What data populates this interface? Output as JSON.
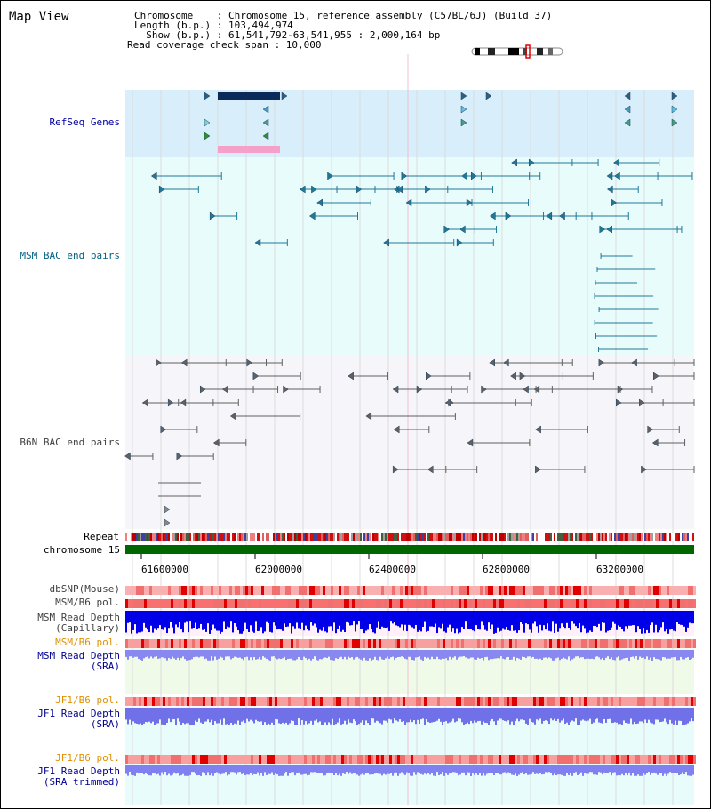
{
  "panel_title": "Map View",
  "info": {
    "chromosome_line": "Chromosome    : Chromosome 15, reference assembly (C57BL/6J) (Build 37)",
    "length_line": "Length (b.p.) : 103,494,974",
    "show_line": "  Show (b.p.) : 61,541,792-63,541,955 : 2,000,164 bp",
    "coverage_line": "Read coverage check span : 10,000"
  },
  "tracks": {
    "refseq": "RefSeq Genes",
    "msm_bac": "MSM BAC end pairs",
    "b6n_bac": "B6N BAC end pairs",
    "repeat": "Repeat",
    "chromosome": "chromosome 15",
    "dbsnp": "dbSNP(Mouse)",
    "msm_b6_pol_1": "MSM/B6 pol.",
    "msm_read_depth_cap": "MSM Read Depth\n(Capillary)",
    "msm_b6_pol_2": "MSM/B6 pol.",
    "msm_read_depth_sra": "MSM Read Depth\n(SRA)",
    "jf1_b6_pol_1": "JF1/B6 pol.",
    "jf1_read_depth_sra": "JF1 Read Depth\n(SRA)",
    "jf1_b6_pol_2": "JF1/B6 pol.",
    "jf1_read_depth_trim": "JF1 Read Depth\n(SRA trimmed)"
  },
  "axis_ticks": [
    "61600000",
    "62000000",
    "62400000",
    "62800000",
    "63200000"
  ],
  "colors": {
    "refseq_bg": "#d8eefa",
    "msm_bg": "#e8fcfc",
    "b6n_bg": "#f6f6fa",
    "refseq_label": "#0000a0",
    "msm_label": "#006080",
    "b6n_label": "#404040",
    "orange_label": "#e09000",
    "blue_label": "#000090",
    "chromosome_bar": "#006600",
    "depth_blue": "#0000ee",
    "depth_violet": "#8080f0"
  }
}
